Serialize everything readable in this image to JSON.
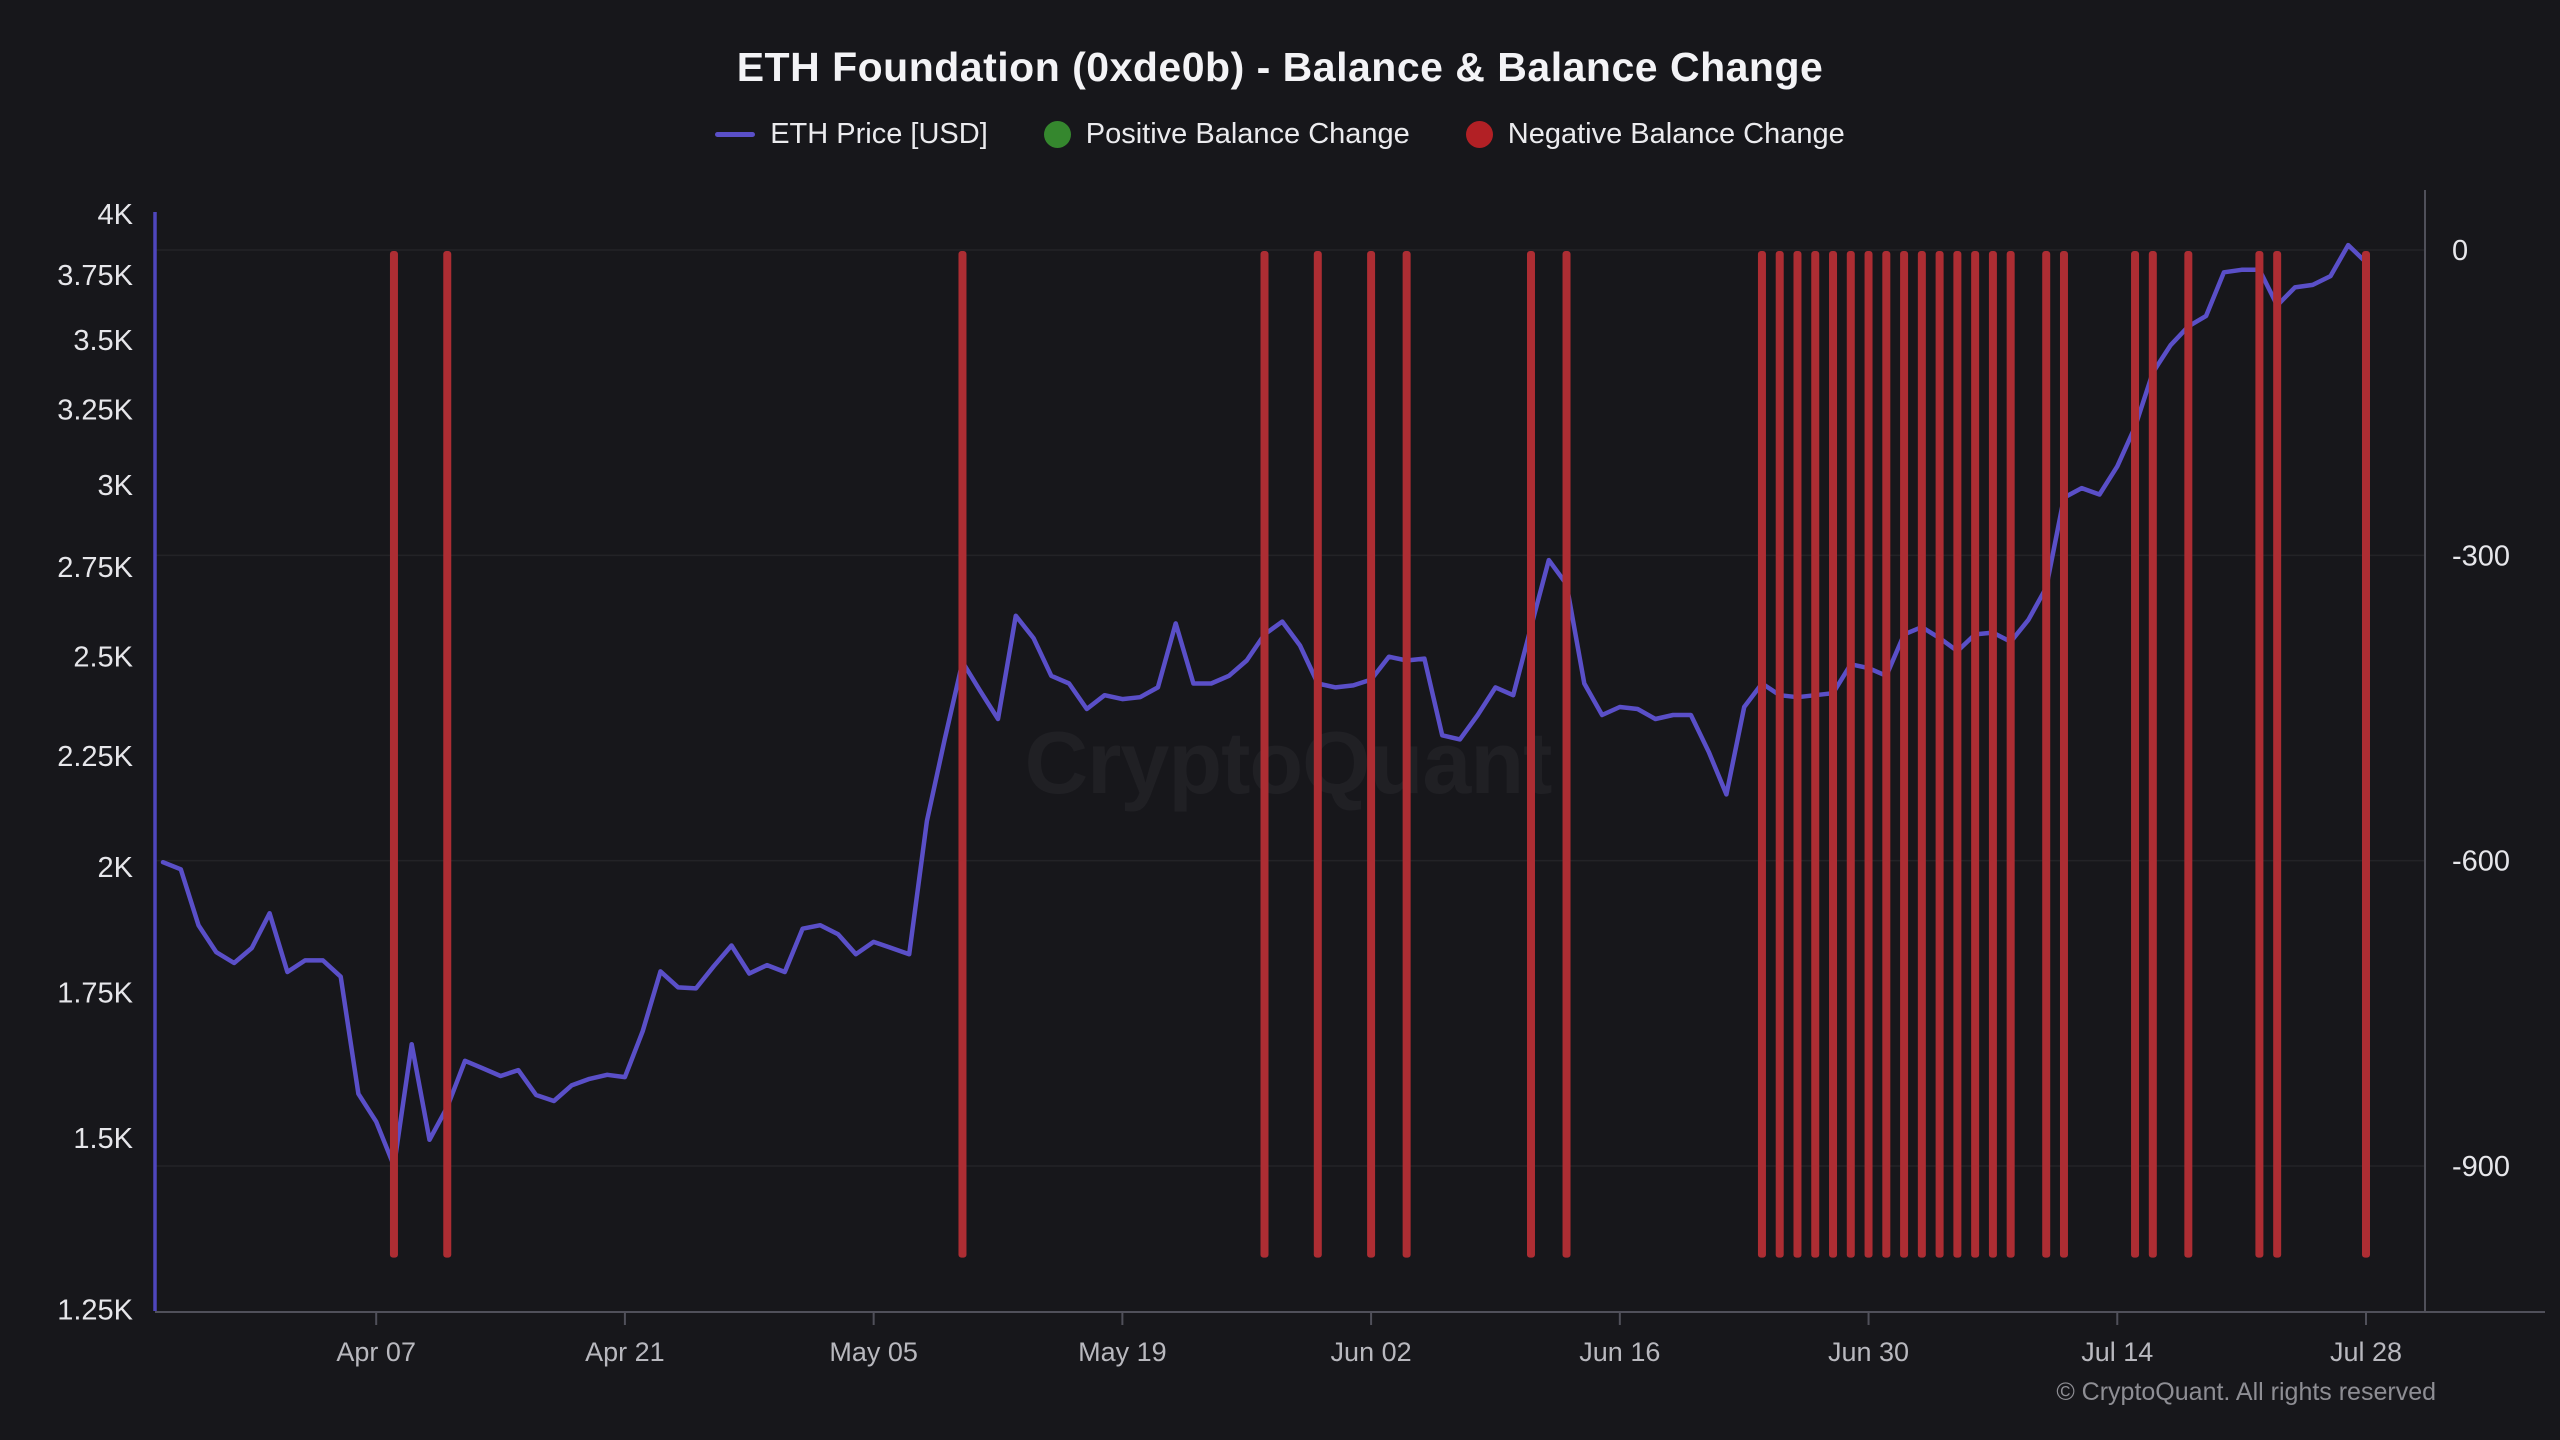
{
  "header": {
    "title": "ETH Foundation (0xde0b) - Balance & Balance Change"
  },
  "legend": {
    "items": [
      {
        "label": "ETH Price [USD]",
        "swatch": "line"
      },
      {
        "label": "Positive Balance Change",
        "swatch": "dot"
      },
      {
        "label": "Negative Balance Change",
        "swatch": "dot"
      }
    ]
  },
  "watermark": {
    "text": "CryptoQuant"
  },
  "footer": {
    "copyright": "© CryptoQuant. All rights reserved"
  },
  "colors": {
    "background": "#17171b",
    "price_line": "#5a4fc8",
    "price_axis": "#4f46bd",
    "positive_dot": "#35872e",
    "negative_dot": "#b22025",
    "bar_red": "#ad2d33",
    "gridline": "rgba(255,255,255,0.055)",
    "axis_grey": "#50505a",
    "label_light": "#e6e6ea",
    "label_dim": "#b8b8be"
  },
  "chart_data": {
    "type": "mixed",
    "title": "ETH Foundation (0xde0b) - Balance & Balance Change",
    "x_axis": {
      "start": "Mar 26",
      "end": "Jul 28",
      "tick_labels": [
        "Apr 07",
        "Apr 21",
        "May 05",
        "May 19",
        "Jun 02",
        "Jun 16",
        "Jun 30",
        "Jul 14",
        "Jul 28"
      ]
    },
    "left_axis": {
      "label": "ETH Price [USD]",
      "scale": "log",
      "range": [
        1250,
        4000
      ],
      "tick_labels": [
        "4K",
        "3.75K",
        "3.5K",
        "3.25K",
        "3K",
        "2.75K",
        "2.5K",
        "2.25K",
        "2K",
        "1.75K",
        "1.5K",
        "1.25K"
      ],
      "tick_values": [
        4000,
        3750,
        3500,
        3250,
        3000,
        2750,
        2500,
        2250,
        2000,
        1750,
        1500,
        1250
      ]
    },
    "right_axis": {
      "label": "Balance Change",
      "scale": "linear",
      "tick_values": [
        0,
        -300,
        -600,
        -900
      ],
      "bar_value_as_drawn": -990
    },
    "series": [
      {
        "name": "ETH Price [USD]",
        "type": "line",
        "axis": "left",
        "points": [
          [
            "Mar 26",
            2010
          ],
          [
            "Mar 27",
            1995
          ],
          [
            "Mar 28",
            1880
          ],
          [
            "Mar 29",
            1827
          ],
          [
            "Mar 30",
            1806
          ],
          [
            "Mar 31",
            1835
          ],
          [
            "Apr 01",
            1904
          ],
          [
            "Apr 02",
            1789
          ],
          [
            "Apr 03",
            1811
          ],
          [
            "Apr 04",
            1811
          ],
          [
            "Apr 05",
            1780
          ],
          [
            "Apr 06",
            1572
          ],
          [
            "Apr 07",
            1526
          ],
          [
            "Apr 08",
            1456
          ],
          [
            "Apr 09",
            1657
          ],
          [
            "Apr 10",
            1497
          ],
          [
            "Apr 11",
            1550
          ],
          [
            "Apr 12",
            1628
          ],
          [
            "Apr 13",
            1615
          ],
          [
            "Apr 14",
            1602
          ],
          [
            "Apr 15",
            1612
          ],
          [
            "Apr 16",
            1570
          ],
          [
            "Apr 17",
            1560
          ],
          [
            "Apr 18",
            1586
          ],
          [
            "Apr 19",
            1597
          ],
          [
            "Apr 20",
            1604
          ],
          [
            "Apr 21",
            1600
          ],
          [
            "Apr 22",
            1680
          ],
          [
            "Apr 23",
            1790
          ],
          [
            "Apr 24",
            1760
          ],
          [
            "Apr 25",
            1758
          ],
          [
            "Apr 26",
            1800
          ],
          [
            "Apr 27",
            1840
          ],
          [
            "Apr 28",
            1786
          ],
          [
            "Apr 29",
            1802
          ],
          [
            "Apr 30",
            1789
          ],
          [
            "May 01",
            1873
          ],
          [
            "May 02",
            1880
          ],
          [
            "May 03",
            1862
          ],
          [
            "May 04",
            1823
          ],
          [
            "May 05",
            1847
          ],
          [
            "May 06",
            1835
          ],
          [
            "May 07",
            1823
          ],
          [
            "May 08",
            2100
          ],
          [
            "May 09",
            2290
          ],
          [
            "May 10",
            2486
          ],
          [
            "May 11",
            2411
          ],
          [
            "May 12",
            2340
          ],
          [
            "May 13",
            2611
          ],
          [
            "May 14",
            2550
          ],
          [
            "May 15",
            2450
          ],
          [
            "May 16",
            2430
          ],
          [
            "May 17",
            2365
          ],
          [
            "May 18",
            2400
          ],
          [
            "May 19",
            2390
          ],
          [
            "May 20",
            2395
          ],
          [
            "May 21",
            2420
          ],
          [
            "May 22",
            2590
          ],
          [
            "May 23",
            2430
          ],
          [
            "May 24",
            2430
          ],
          [
            "May 25",
            2450
          ],
          [
            "May 26",
            2490
          ],
          [
            "May 27",
            2560
          ],
          [
            "May 28",
            2595
          ],
          [
            "May 29",
            2530
          ],
          [
            "May 30",
            2430
          ],
          [
            "May 31",
            2420
          ],
          [
            "Jun 01",
            2425
          ],
          [
            "Jun 02",
            2440
          ],
          [
            "Jun 03",
            2500
          ],
          [
            "Jun 04",
            2490
          ],
          [
            "Jun 05",
            2495
          ],
          [
            "Jun 06",
            2300
          ],
          [
            "Jun 07",
            2290
          ],
          [
            "Jun 08",
            2350
          ],
          [
            "Jun 09",
            2420
          ],
          [
            "Jun 10",
            2400
          ],
          [
            "Jun 11",
            2580
          ],
          [
            "Jun 12",
            2770
          ],
          [
            "Jun 13",
            2700
          ],
          [
            "Jun 14",
            2430
          ],
          [
            "Jun 15",
            2350
          ],
          [
            "Jun 16",
            2370
          ],
          [
            "Jun 17",
            2365
          ],
          [
            "Jun 18",
            2340
          ],
          [
            "Jun 19",
            2350
          ],
          [
            "Jun 20",
            2350
          ],
          [
            "Jun 21",
            2260
          ],
          [
            "Jun 22",
            2160
          ],
          [
            "Jun 23",
            2370
          ],
          [
            "Jun 24",
            2430
          ],
          [
            "Jun 25",
            2400
          ],
          [
            "Jun 26",
            2395
          ],
          [
            "Jun 27",
            2400
          ],
          [
            "Jun 28",
            2405
          ],
          [
            "Jun 29",
            2480
          ],
          [
            "Jun 30",
            2470
          ],
          [
            "Jul 01",
            2450
          ],
          [
            "Jul 02",
            2560
          ],
          [
            "Jul 03",
            2580
          ],
          [
            "Jul 04",
            2550
          ],
          [
            "Jul 05",
            2515
          ],
          [
            "Jul 06",
            2560
          ],
          [
            "Jul 07",
            2565
          ],
          [
            "Jul 08",
            2540
          ],
          [
            "Jul 09",
            2600
          ],
          [
            "Jul 10",
            2690
          ],
          [
            "Jul 11",
            2960
          ],
          [
            "Jul 12",
            2990
          ],
          [
            "Jul 13",
            2970
          ],
          [
            "Jul 14",
            3060
          ],
          [
            "Jul 15",
            3190
          ],
          [
            "Jul 16",
            3380
          ],
          [
            "Jul 17",
            3480
          ],
          [
            "Jul 18",
            3550
          ],
          [
            "Jul 19",
            3590
          ],
          [
            "Jul 20",
            3760
          ],
          [
            "Jul 21",
            3770
          ],
          [
            "Jul 22",
            3770
          ],
          [
            "Jul 23",
            3630
          ],
          [
            "Jul 24",
            3700
          ],
          [
            "Jul 25",
            3710
          ],
          [
            "Jul 26",
            3745
          ],
          [
            "Jul 27",
            3870
          ],
          [
            "Jul 28",
            3800
          ]
        ]
      },
      {
        "name": "Negative Balance Change",
        "type": "bar",
        "axis": "right",
        "value_as_drawn": -990,
        "dates": [
          "Apr 08",
          "Apr 11",
          "May 10",
          "May 27",
          "May 30",
          "Jun 02",
          "Jun 04",
          "Jun 11",
          "Jun 13",
          "Jun 24",
          "Jun 25",
          "Jun 26",
          "Jun 27",
          "Jun 28",
          "Jun 29",
          "Jun 30",
          "Jul 01",
          "Jul 02",
          "Jul 03",
          "Jul 04",
          "Jul 05",
          "Jul 06",
          "Jul 07",
          "Jul 08",
          "Jul 10",
          "Jul 11",
          "Jul 15",
          "Jul 16",
          "Jul 18",
          "Jul 22",
          "Jul 23",
          "Jul 28"
        ]
      },
      {
        "name": "Positive Balance Change",
        "type": "bar",
        "axis": "right",
        "dates": []
      }
    ]
  }
}
